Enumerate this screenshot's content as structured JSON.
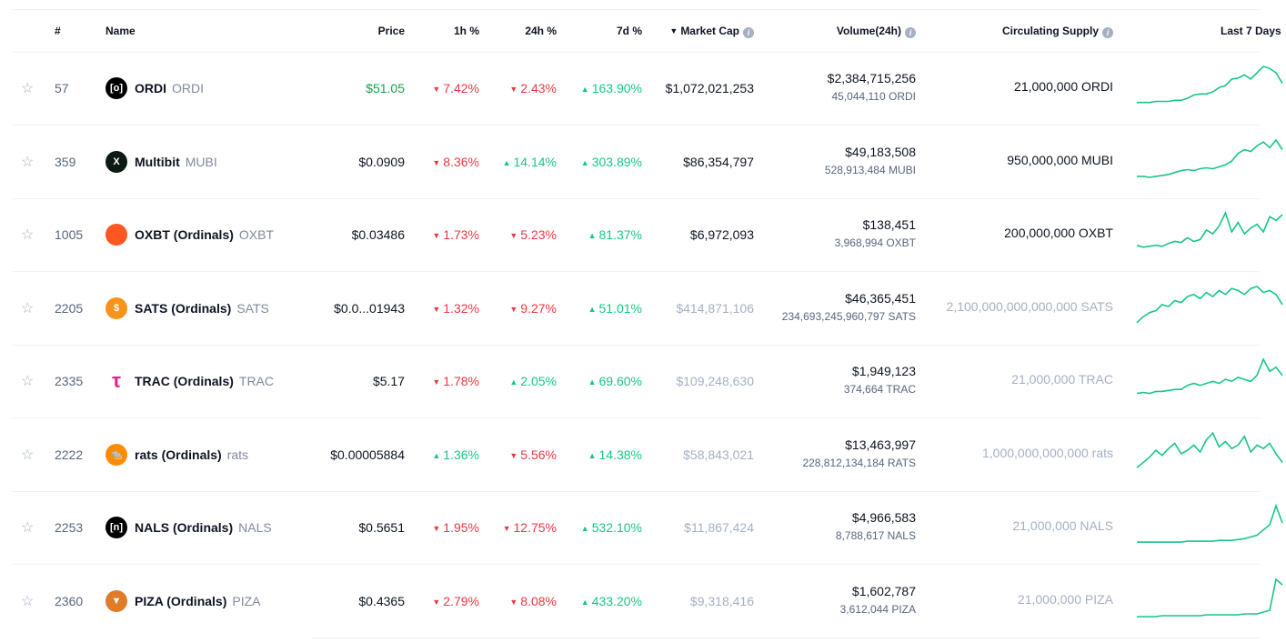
{
  "header": {
    "rank": "#",
    "name": "Name",
    "price": "Price",
    "h1": "1h %",
    "h24": "24h %",
    "d7": "7d %",
    "market_cap": "Market Cap",
    "sort_icon": "caret-down-icon",
    "volume": "Volume(24h)",
    "supply": "Circulating Supply",
    "last7": "Last 7 Days"
  },
  "colors": {
    "up": "#16c784",
    "down": "#ea3943",
    "price_up": "#16a34a",
    "sparkline": "#16c784"
  },
  "rows": [
    {
      "rank": "57",
      "name": "ORDI",
      "symbol": "ORDI",
      "logo_bg": "#000000",
      "logo_glyph": "[o]",
      "price": "$51.05",
      "price_up": true,
      "h1": {
        "v": "7.42%",
        "dir": "down"
      },
      "h24": {
        "v": "2.43%",
        "dir": "down"
      },
      "d7": {
        "v": "163.90%",
        "dir": "up"
      },
      "market_cap": "$1,072,021,253",
      "mc_muted": false,
      "volume": "$2,384,715,256",
      "volume_sub": "45,044,110 ORDI",
      "supply": "21,000,000 ORDI",
      "supply_muted": false,
      "spark": [
        2,
        2,
        2,
        3,
        3,
        3,
        4,
        4,
        6,
        9,
        10,
        10,
        12,
        16,
        18,
        24,
        25,
        28,
        24,
        30,
        36,
        34,
        30,
        20
      ]
    },
    {
      "rank": "359",
      "name": "Multibit",
      "symbol": "MUBI",
      "logo_bg": "#0b1a12",
      "logo_glyph": "X",
      "price": "$0.0909",
      "price_up": false,
      "h1": {
        "v": "8.36%",
        "dir": "down"
      },
      "h24": {
        "v": "14.14%",
        "dir": "up"
      },
      "d7": {
        "v": "303.89%",
        "dir": "up"
      },
      "market_cap": "$86,354,797",
      "mc_muted": false,
      "volume": "$49,183,508",
      "volume_sub": "528,913,484 MUBI",
      "supply": "950,000,000 MUBI",
      "supply_muted": false,
      "spark": [
        2,
        2,
        1,
        2,
        3,
        4,
        6,
        8,
        9,
        8,
        10,
        11,
        10,
        12,
        14,
        18,
        26,
        30,
        28,
        34,
        38,
        32,
        40,
        30
      ]
    },
    {
      "rank": "1005",
      "name": "OXBT (Ordinals)",
      "symbol": "OXBT",
      "logo_bg": "#ff5722",
      "logo_glyph": "",
      "price": "$0.03486",
      "price_up": false,
      "h1": {
        "v": "1.73%",
        "dir": "down"
      },
      "h24": {
        "v": "5.23%",
        "dir": "down"
      },
      "d7": {
        "v": "81.37%",
        "dir": "up"
      },
      "market_cap": "$6,972,093",
      "mc_muted": false,
      "volume": "$138,451",
      "volume_sub": "3,968,994 OXBT",
      "supply": "200,000,000 OXBT",
      "supply_muted": false,
      "spark": [
        6,
        4,
        5,
        6,
        5,
        8,
        10,
        9,
        14,
        10,
        12,
        22,
        18,
        26,
        40,
        20,
        30,
        18,
        24,
        28,
        20,
        36,
        32,
        38
      ]
    },
    {
      "rank": "2205",
      "name": "SATS (Ordinals)",
      "symbol": "SATS",
      "logo_bg": "#f7931a",
      "logo_glyph": "$",
      "price": "$0.0...01943",
      "price_up": false,
      "h1": {
        "v": "1.32%",
        "dir": "down"
      },
      "h24": {
        "v": "9.27%",
        "dir": "down"
      },
      "d7": {
        "v": "51.01%",
        "dir": "up"
      },
      "market_cap": "$414,871,106",
      "mc_muted": true,
      "volume": "$46,365,451",
      "volume_sub": "234,693,245,960,797 SATS",
      "supply": "2,100,000,000,000,000 SATS",
      "supply_muted": true,
      "spark": [
        2,
        8,
        12,
        14,
        20,
        18,
        24,
        22,
        28,
        30,
        26,
        32,
        28,
        34,
        30,
        36,
        34,
        30,
        36,
        38,
        32,
        34,
        30,
        20
      ]
    },
    {
      "rank": "2335",
      "name": "TRAC (Ordinals)",
      "symbol": "TRAC",
      "logo_bg": "#ffffff",
      "logo_glyph": "τ",
      "price": "$5.17",
      "price_up": false,
      "h1": {
        "v": "1.78%",
        "dir": "down"
      },
      "h24": {
        "v": "2.05%",
        "dir": "up"
      },
      "d7": {
        "v": "69.60%",
        "dir": "up"
      },
      "market_cap": "$109,248,630",
      "mc_muted": true,
      "volume": "$1,949,123",
      "volume_sub": "374,664 TRAC",
      "supply": "21,000,000 TRAC",
      "supply_muted": true,
      "spark": [
        4,
        5,
        4,
        6,
        6,
        7,
        8,
        8,
        12,
        14,
        12,
        14,
        16,
        14,
        18,
        16,
        20,
        18,
        16,
        22,
        38,
        26,
        30,
        22
      ]
    },
    {
      "rank": "2222",
      "name": "rats (Ordinals)",
      "symbol": "rats",
      "logo_bg": "#ff8c00",
      "logo_glyph": "🐀",
      "price": "$0.00005884",
      "price_up": false,
      "h1": {
        "v": "1.36%",
        "dir": "up"
      },
      "h24": {
        "v": "5.56%",
        "dir": "down"
      },
      "d7": {
        "v": "14.38%",
        "dir": "up"
      },
      "market_cap": "$58,843,021",
      "mc_muted": true,
      "volume": "$13,463,997",
      "volume_sub": "228,812,134,184 RATS",
      "supply": "1,000,000,000,000 rats",
      "supply_muted": true,
      "spark": [
        4,
        10,
        16,
        24,
        18,
        26,
        32,
        20,
        24,
        30,
        22,
        36,
        44,
        28,
        34,
        26,
        30,
        40,
        22,
        30,
        26,
        32,
        20,
        10
      ]
    },
    {
      "rank": "2253",
      "name": "NALS (Ordinals)",
      "symbol": "NALS",
      "logo_bg": "#000000",
      "logo_glyph": "[n]",
      "price": "$0.5651",
      "price_up": false,
      "h1": {
        "v": "1.95%",
        "dir": "down"
      },
      "h24": {
        "v": "12.75%",
        "dir": "down"
      },
      "d7": {
        "v": "532.10%",
        "dir": "up"
      },
      "market_cap": "$11,867,424",
      "mc_muted": true,
      "volume": "$4,966,583",
      "volume_sub": "8,788,617 NALS",
      "supply": "21,000,000 NALS",
      "supply_muted": true,
      "spark": [
        2,
        2,
        2,
        2,
        2,
        2,
        2,
        2,
        3,
        3,
        3,
        3,
        3,
        4,
        4,
        4,
        5,
        6,
        8,
        10,
        16,
        22,
        44,
        24
      ]
    },
    {
      "rank": "2360",
      "name": "PIZA (Ordinals)",
      "symbol": "PIZA",
      "logo_bg": "#e07b2a",
      "logo_glyph": "▼",
      "price": "$0.4365",
      "price_up": false,
      "h1": {
        "v": "2.79%",
        "dir": "down"
      },
      "h24": {
        "v": "8.08%",
        "dir": "down"
      },
      "d7": {
        "v": "433.20%",
        "dir": "up"
      },
      "market_cap": "$9,318,416",
      "mc_muted": true,
      "volume": "$1,602,787",
      "volume_sub": "3,612,044 PIZA",
      "supply": "21,000,000 PIZA",
      "supply_muted": true,
      "spark": [
        1,
        1,
        1,
        1,
        2,
        2,
        2,
        2,
        2,
        2,
        2,
        3,
        3,
        3,
        3,
        3,
        3,
        4,
        4,
        4,
        6,
        8,
        42,
        36
      ]
    }
  ]
}
